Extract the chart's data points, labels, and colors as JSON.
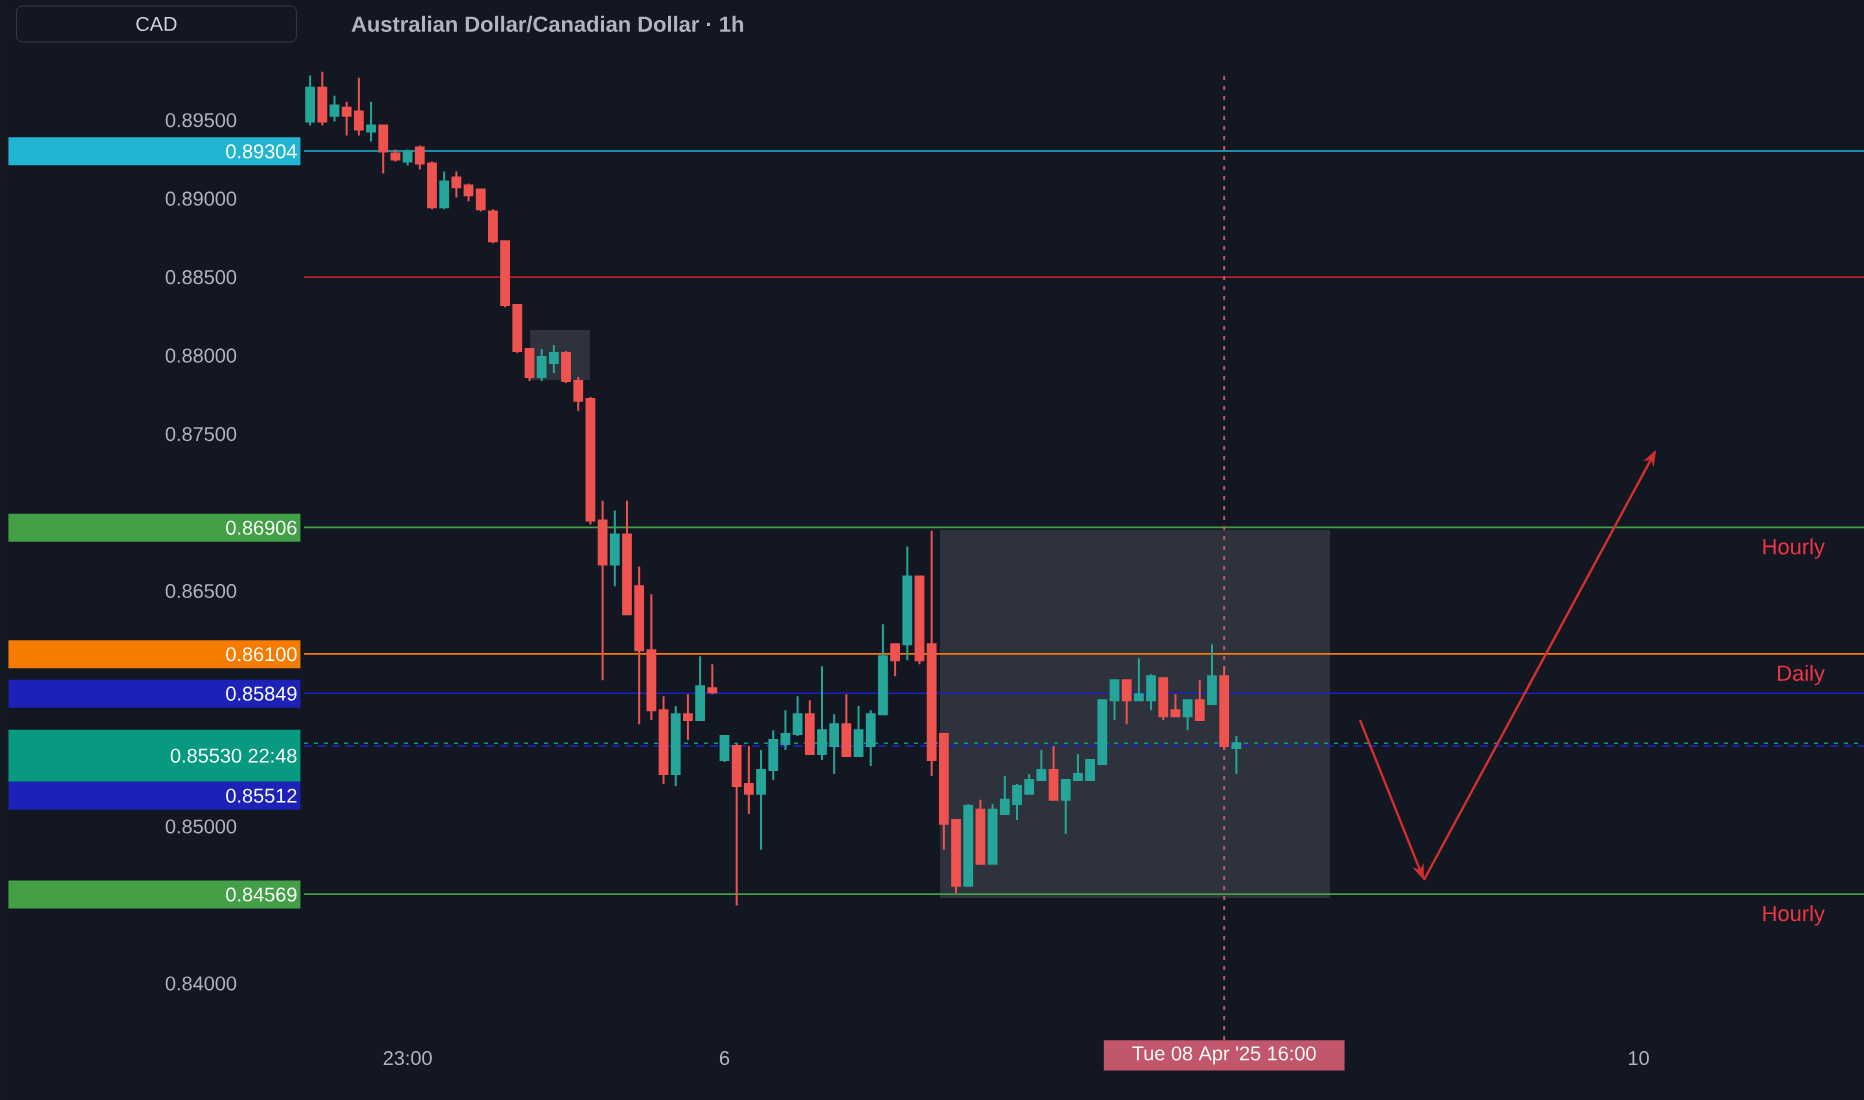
{
  "chart_data": {
    "type": "candlestick",
    "title": "Australian Dollar/Canadian Dollar · 1h",
    "categories": [
      null,
      null,
      null,
      null,
      null,
      null,
      null,
      null,
      "23:00",
      null,
      null,
      null,
      null,
      null,
      null,
      null,
      null,
      null,
      null,
      null,
      null,
      null,
      null,
      null,
      null,
      null,
      null,
      null,
      null,
      null,
      null,
      null,
      null,
      null,
      "6",
      null,
      null,
      null,
      null,
      null,
      null,
      null,
      null,
      null,
      null,
      null,
      null,
      null,
      null,
      null,
      null,
      null,
      null,
      null,
      null,
      null,
      null,
      null,
      null,
      null,
      null,
      null,
      null,
      null,
      null,
      null,
      null,
      null,
      null,
      null,
      null,
      null,
      null,
      null,
      null,
      "Tue 08 Apr '25 16:00",
      null,
      null,
      null,
      null,
      null,
      null,
      null,
      null,
      null,
      null,
      null,
      null,
      null,
      null,
      null,
      null,
      null,
      null,
      null,
      null,
      null,
      null,
      null,
      null,
      null,
      null,
      null,
      null,
      null,
      null,
      null,
      null,
      null,
      "10",
      null,
      null,
      null,
      null,
      null,
      null,
      null,
      null,
      null,
      null,
      null,
      null,
      null,
      null,
      null,
      null,
      null,
      null
    ],
    "ohlc": [
      [
        0.89491,
        0.89784,
        0.89466,
        0.89707
      ],
      [
        0.89707,
        0.89809,
        0.89466,
        0.89491
      ],
      [
        0.89529,
        0.89656,
        0.89491,
        0.89593
      ],
      [
        0.8958,
        0.89618,
        0.89402,
        0.89529
      ],
      [
        0.89555,
        0.89771,
        0.89402,
        0.8944
      ],
      [
        0.89428,
        0.89618,
        0.89364,
        0.89466
      ],
      [
        0.89466,
        0.89466,
        0.89161,
        0.89301
      ],
      [
        0.89288,
        0.89313,
        0.89237,
        0.8925
      ],
      [
        0.89237,
        0.89313,
        0.89212,
        0.89301
      ],
      [
        0.89326,
        0.89339,
        0.89186,
        0.89224
      ],
      [
        0.89224,
        0.89237,
        0.88932,
        0.88945
      ],
      [
        0.88945,
        0.89173,
        0.88932,
        0.8911
      ],
      [
        0.89135,
        0.89173,
        0.89008,
        0.89072
      ],
      [
        0.89084,
        0.89097,
        0.88983,
        0.89021
      ],
      [
        0.89059,
        0.89059,
        0.88919,
        0.88932
      ],
      [
        0.88919,
        0.88932,
        0.88716,
        0.88729
      ],
      [
        0.88729,
        0.88729,
        0.88309,
        0.88322
      ],
      [
        0.88322,
        0.88322,
        0.88017,
        0.88029
      ],
      [
        0.88042,
        0.88042,
        0.87839,
        0.87864
      ],
      [
        0.87864,
        0.88042,
        0.87839,
        0.87991
      ],
      [
        0.87953,
        0.88067,
        0.8789,
        0.88017
      ],
      [
        0.88017,
        0.88029,
        0.87826,
        0.87839
      ],
      [
        0.87839,
        0.87864,
        0.87648,
        0.87712
      ],
      [
        0.87724,
        0.87737,
        0.86924,
        0.86949
      ],
      [
        0.86949,
        0.87076,
        0.85932,
        0.8667
      ],
      [
        0.8667,
        0.87013,
        0.8653,
        0.8686
      ],
      [
        0.8686,
        0.87076,
        0.86352,
        0.86352
      ],
      [
        0.8653,
        0.86657,
        0.85652,
        0.86123
      ],
      [
        0.86123,
        0.86479,
        0.85678,
        0.85741
      ],
      [
        0.85741,
        0.8583,
        0.85271,
        0.85335
      ],
      [
        0.85335,
        0.85767,
        0.85258,
        0.85716
      ],
      [
        0.85716,
        0.85843,
        0.85551,
        0.85678
      ],
      [
        0.85678,
        0.86085,
        0.85678,
        0.85894
      ],
      [
        0.85881,
        0.86034,
        0.85843,
        0.85856
      ],
      [
        0.85424,
        0.85576,
        0.85411,
        0.85576
      ],
      [
        0.85513,
        0.85525,
        0.84496,
        0.85258
      ],
      [
        0.85271,
        0.85513,
        0.8508,
        0.85208
      ],
      [
        0.85208,
        0.85487,
        0.84852,
        0.8536
      ],
      [
        0.8536,
        0.85614,
        0.85297,
        0.85551
      ],
      [
        0.85525,
        0.85741,
        0.85487,
        0.85589
      ],
      [
        0.85589,
        0.8583,
        0.85576,
        0.85716
      ],
      [
        0.85716,
        0.85805,
        0.85462,
        0.85462
      ],
      [
        0.85462,
        0.86021,
        0.85424,
        0.85614
      ],
      [
        0.85513,
        0.85716,
        0.85335,
        0.85652
      ],
      [
        0.85652,
        0.85843,
        0.85449,
        0.85449
      ],
      [
        0.85449,
        0.85767,
        0.85449,
        0.85614
      ],
      [
        0.85513,
        0.85741,
        0.85386,
        0.85716
      ],
      [
        0.85716,
        0.86288,
        0.85716,
        0.86085
      ],
      [
        0.86161,
        0.86161,
        0.85958,
        0.86059
      ],
      [
        0.86161,
        0.86784,
        0.86059,
        0.86593
      ],
      [
        0.86593,
        0.86593,
        0.86034,
        0.86059
      ],
      [
        0.86161,
        0.86885,
        0.85322,
        0.85424
      ],
      [
        0.85589,
        0.85589,
        0.84852,
        0.85017
      ],
      [
        0.85042,
        0.85042,
        0.84572,
        0.84623
      ],
      [
        0.84623,
        0.85144,
        0.84623,
        0.85131
      ],
      [
        0.85106,
        0.8517,
        0.84763,
        0.84763
      ],
      [
        0.84763,
        0.85144,
        0.84763,
        0.85106
      ],
      [
        0.8508,
        0.85322,
        0.8508,
        0.8517
      ],
      [
        0.85144,
        0.85271,
        0.85042,
        0.85258
      ],
      [
        0.85208,
        0.85335,
        0.85208,
        0.85297
      ],
      [
        0.85297,
        0.85487,
        0.85297,
        0.8536
      ],
      [
        0.8536,
        0.85513,
        0.8517,
        0.8517
      ],
      [
        0.8517,
        0.85297,
        0.84953,
        0.85297
      ],
      [
        0.85297,
        0.85462,
        0.85297,
        0.85335
      ],
      [
        0.85297,
        0.85424,
        0.85297,
        0.85424
      ],
      [
        0.85398,
        0.85805,
        0.85398,
        0.85805
      ],
      [
        0.85805,
        0.85932,
        0.85678,
        0.85932
      ],
      [
        0.85932,
        0.85932,
        0.85652,
        0.85805
      ],
      [
        0.85805,
        0.86072,
        0.85805,
        0.85843
      ],
      [
        0.85805,
        0.8597,
        0.85741,
        0.85958
      ],
      [
        0.85945,
        0.85945,
        0.85678,
        0.85703
      ],
      [
        0.85741,
        0.85843,
        0.85703,
        0.85703
      ],
      [
        0.85703,
        0.85805,
        0.85614,
        0.85805
      ],
      [
        0.85805,
        0.85932,
        0.85678,
        0.85678
      ],
      [
        0.8578,
        0.86161,
        0.8578,
        0.85958
      ],
      [
        0.85958,
        0.86021,
        0.85487,
        0.85513
      ],
      [
        0.855,
        0.85576,
        0.85335,
        0.8553
      ],
      null,
      null,
      null,
      null,
      null,
      null,
      null,
      null,
      null,
      null,
      null,
      null,
      null,
      null,
      null,
      null,
      null,
      null,
      null,
      null,
      null,
      null,
      null,
      null,
      null,
      null,
      null,
      null,
      null,
      null,
      null,
      null,
      null,
      null,
      null,
      null,
      null,
      null,
      null,
      null,
      null,
      null,
      null,
      null,
      null,
      null,
      null,
      null,
      null,
      null,
      null
    ],
    "colors": [
      "#26a69a",
      "#ef5350",
      "#26a69a",
      "#ef5350",
      "#ef5350",
      "#26a69a",
      "#ef5350",
      "#ef5350",
      "#26a69a",
      "#ef5350",
      "#ef5350",
      "#26a69a",
      "#ef5350",
      "#ef5350",
      "#ef5350",
      "#ef5350",
      "#ef5350",
      "#ef5350",
      "#ef5350",
      "#26a69a",
      "#26a69a",
      "#ef5350",
      "#ef5350",
      "#ef5350",
      "#ef5350",
      "#26a69a",
      "#ef5350",
      "#ef5350",
      "#ef5350",
      "#ef5350",
      "#26a69a",
      "#ef5350",
      "#26a69a",
      "#ef5350",
      "#26a69a",
      "#ef5350",
      "#ef5350",
      "#26a69a",
      "#26a69a",
      "#26a69a",
      "#26a69a",
      "#ef5350",
      "#26a69a",
      "#26a69a",
      "#ef5350",
      "#26a69a",
      "#26a69a",
      "#26a69a",
      "#ef5350",
      "#26a69a",
      "#ef5350",
      "#ef5350",
      "#ef5350",
      "#ef5350",
      "#26a69a",
      "#ef5350",
      "#26a69a",
      "#26a69a",
      "#26a69a",
      "#26a69a",
      "#26a69a",
      "#ef5350",
      "#26a69a",
      "#26a69a",
      "#26a69a",
      "#26a69a",
      "#26a69a",
      "#ef5350",
      "#26a69a",
      "#26a69a",
      "#ef5350",
      "#ef5350",
      "#26a69a",
      "#ef5350",
      "#26a69a",
      "#ef5350",
      "#26a69a",
      null,
      null,
      null,
      null,
      null,
      null,
      null,
      null,
      null,
      null,
      null,
      null,
      null,
      null,
      null,
      null,
      null,
      null,
      null,
      null,
      null,
      null,
      null,
      null,
      null,
      null,
      null,
      null,
      null,
      null,
      null,
      null,
      null,
      null,
      null,
      null,
      null,
      null,
      null,
      null,
      null,
      null,
      null,
      null,
      null,
      null,
      null,
      null,
      null,
      null,
      null
    ],
    "ylim": [
      0.8364,
      0.8982
    ],
    "yticks": [
      {
        "value": 0.84,
        "label": "0.84000"
      },
      {
        "value": 0.85,
        "label": "0.85000"
      },
      {
        "value": 0.865,
        "label": "0.86500"
      },
      {
        "value": 0.875,
        "label": "0.87500"
      },
      {
        "value": 0.88,
        "label": "0.88000"
      },
      {
        "value": 0.885,
        "label": "0.88500"
      },
      {
        "value": 0.89,
        "label": "0.89000"
      },
      {
        "value": 0.895,
        "label": "0.89500"
      }
    ],
    "ref_lines": [
      {
        "axis": "y",
        "value": 0.89304,
        "label": "0.89304",
        "color": "#22b5d3"
      },
      {
        "axis": "y",
        "value": 0.885,
        "label": null,
        "color": "#b2222d"
      },
      {
        "axis": "y",
        "value": 0.86906,
        "label": "0.86906",
        "color": "#43a047"
      },
      {
        "axis": "y",
        "value": 0.861,
        "label": "0.86100",
        "color": "#f57c00"
      },
      {
        "axis": "y",
        "value": 0.85849,
        "label": "0.85849",
        "color": "#1c21b8"
      },
      {
        "axis": "y",
        "value": 0.8553,
        "label": "0.85530 22:48",
        "color": "#089981",
        "line_style": "dotted"
      },
      {
        "axis": "y",
        "value": 0.85512,
        "label": "0.85512",
        "color": "#1c21b8",
        "line_style": "dashed"
      },
      {
        "axis": "y",
        "value": 0.84569,
        "label": "0.84569",
        "color": "#43a047"
      },
      {
        "axis": "x",
        "value": "Tue 08 Apr '25 16:00",
        "label": null,
        "color": "#c2566a",
        "line_style": "dotted"
      }
    ],
    "annotations": [
      "CAD",
      {
        "text": "Hourly",
        "y": 0.86906
      },
      {
        "text": "Daily",
        "y": 0.861
      },
      {
        "text": "Hourly",
        "y": 0.84569
      }
    ]
  }
}
